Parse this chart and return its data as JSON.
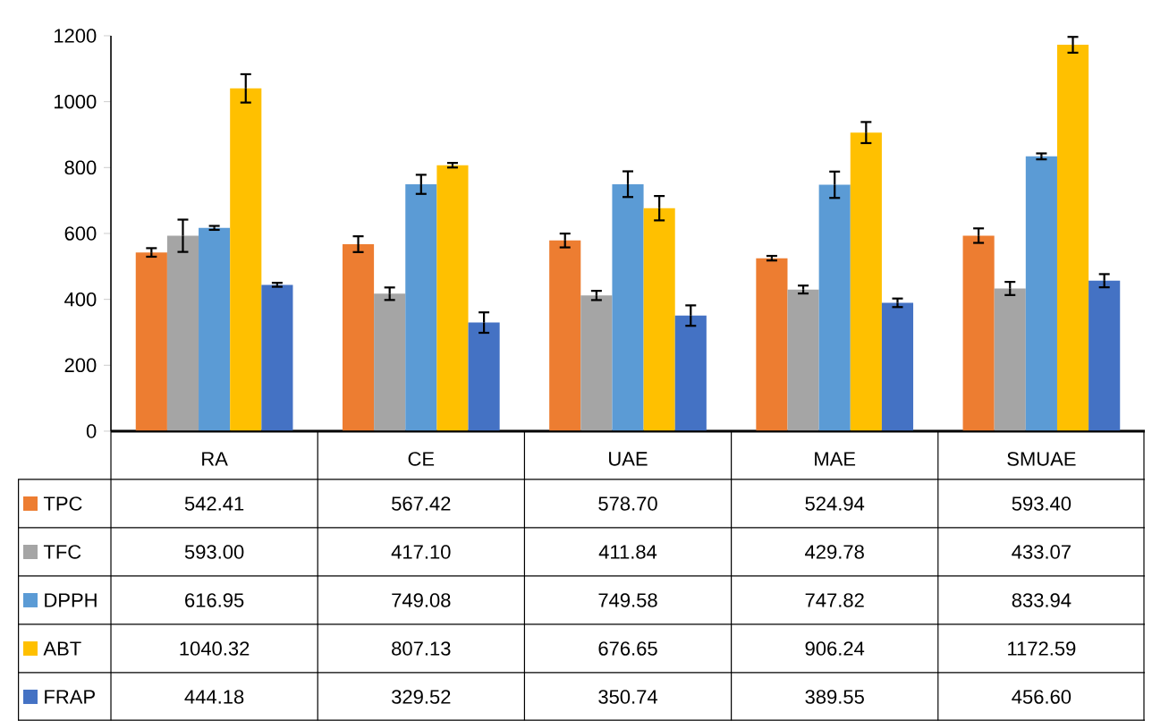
{
  "chart_data": {
    "type": "bar",
    "categories": [
      "RA",
      "CE",
      "UAE",
      "MAE",
      "SMUAE"
    ],
    "ylim": [
      0,
      1200
    ],
    "yticks": [
      0,
      200,
      400,
      600,
      800,
      1000,
      1200
    ],
    "legend": "bottom",
    "series": [
      {
        "name": "TPC",
        "color": "#ed7d31",
        "values": [
          542.41,
          567.42,
          578.7,
          524.94,
          593.4
        ],
        "errors": [
          13,
          24,
          21,
          7,
          22
        ],
        "value_labels": [
          "542.41",
          "567.42",
          "578.70",
          "524.94",
          "593.40"
        ]
      },
      {
        "name": "TFC",
        "color": "#a5a5a5",
        "values": [
          593.0,
          417.1,
          411.84,
          429.78,
          433.07
        ],
        "errors": [
          49,
          19,
          14,
          12,
          20
        ],
        "value_labels": [
          "593.00",
          "417.10",
          "411.84",
          "429.78",
          "433.07"
        ]
      },
      {
        "name": "DPPH",
        "color": "#5b9bd5",
        "values": [
          616.95,
          749.08,
          749.58,
          747.82,
          833.94
        ],
        "errors": [
          6,
          29,
          39,
          40,
          9
        ],
        "value_labels": [
          "616.95",
          "749.08",
          "749.58",
          "747.82",
          "833.94"
        ]
      },
      {
        "name": "ABT",
        "color": "#ffc000",
        "values": [
          1040.32,
          807.13,
          676.65,
          906.24,
          1172.59
        ],
        "errors": [
          43,
          7,
          37,
          32,
          24
        ],
        "value_labels": [
          "1040.32",
          "807.13",
          "676.65",
          "906.24",
          "1172.59"
        ]
      },
      {
        "name": "FRAP",
        "color": "#4472c4",
        "values": [
          444.18,
          329.52,
          350.74,
          389.55,
          456.6
        ],
        "errors": [
          6,
          31,
          31,
          13,
          20
        ],
        "value_labels": [
          "444.18",
          "329.52",
          "350.74",
          "389.55",
          "456.60"
        ]
      }
    ]
  }
}
